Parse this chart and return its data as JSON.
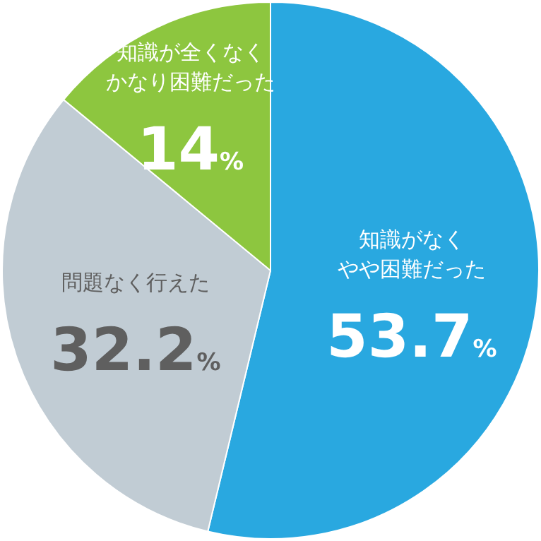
{
  "chart_data": {
    "type": "pie",
    "categories": [
      "知識がなくやや困難だった",
      "問題なく行えた",
      "知識が全くなくかなり困難だった"
    ],
    "values": [
      53.7,
      32.2,
      14
    ],
    "colors": [
      "#29a8e0",
      "#c1ccd4",
      "#8dc63f"
    ],
    "value_labels": [
      "53.7%",
      "32.2%",
      "14%"
    ]
  }
}
